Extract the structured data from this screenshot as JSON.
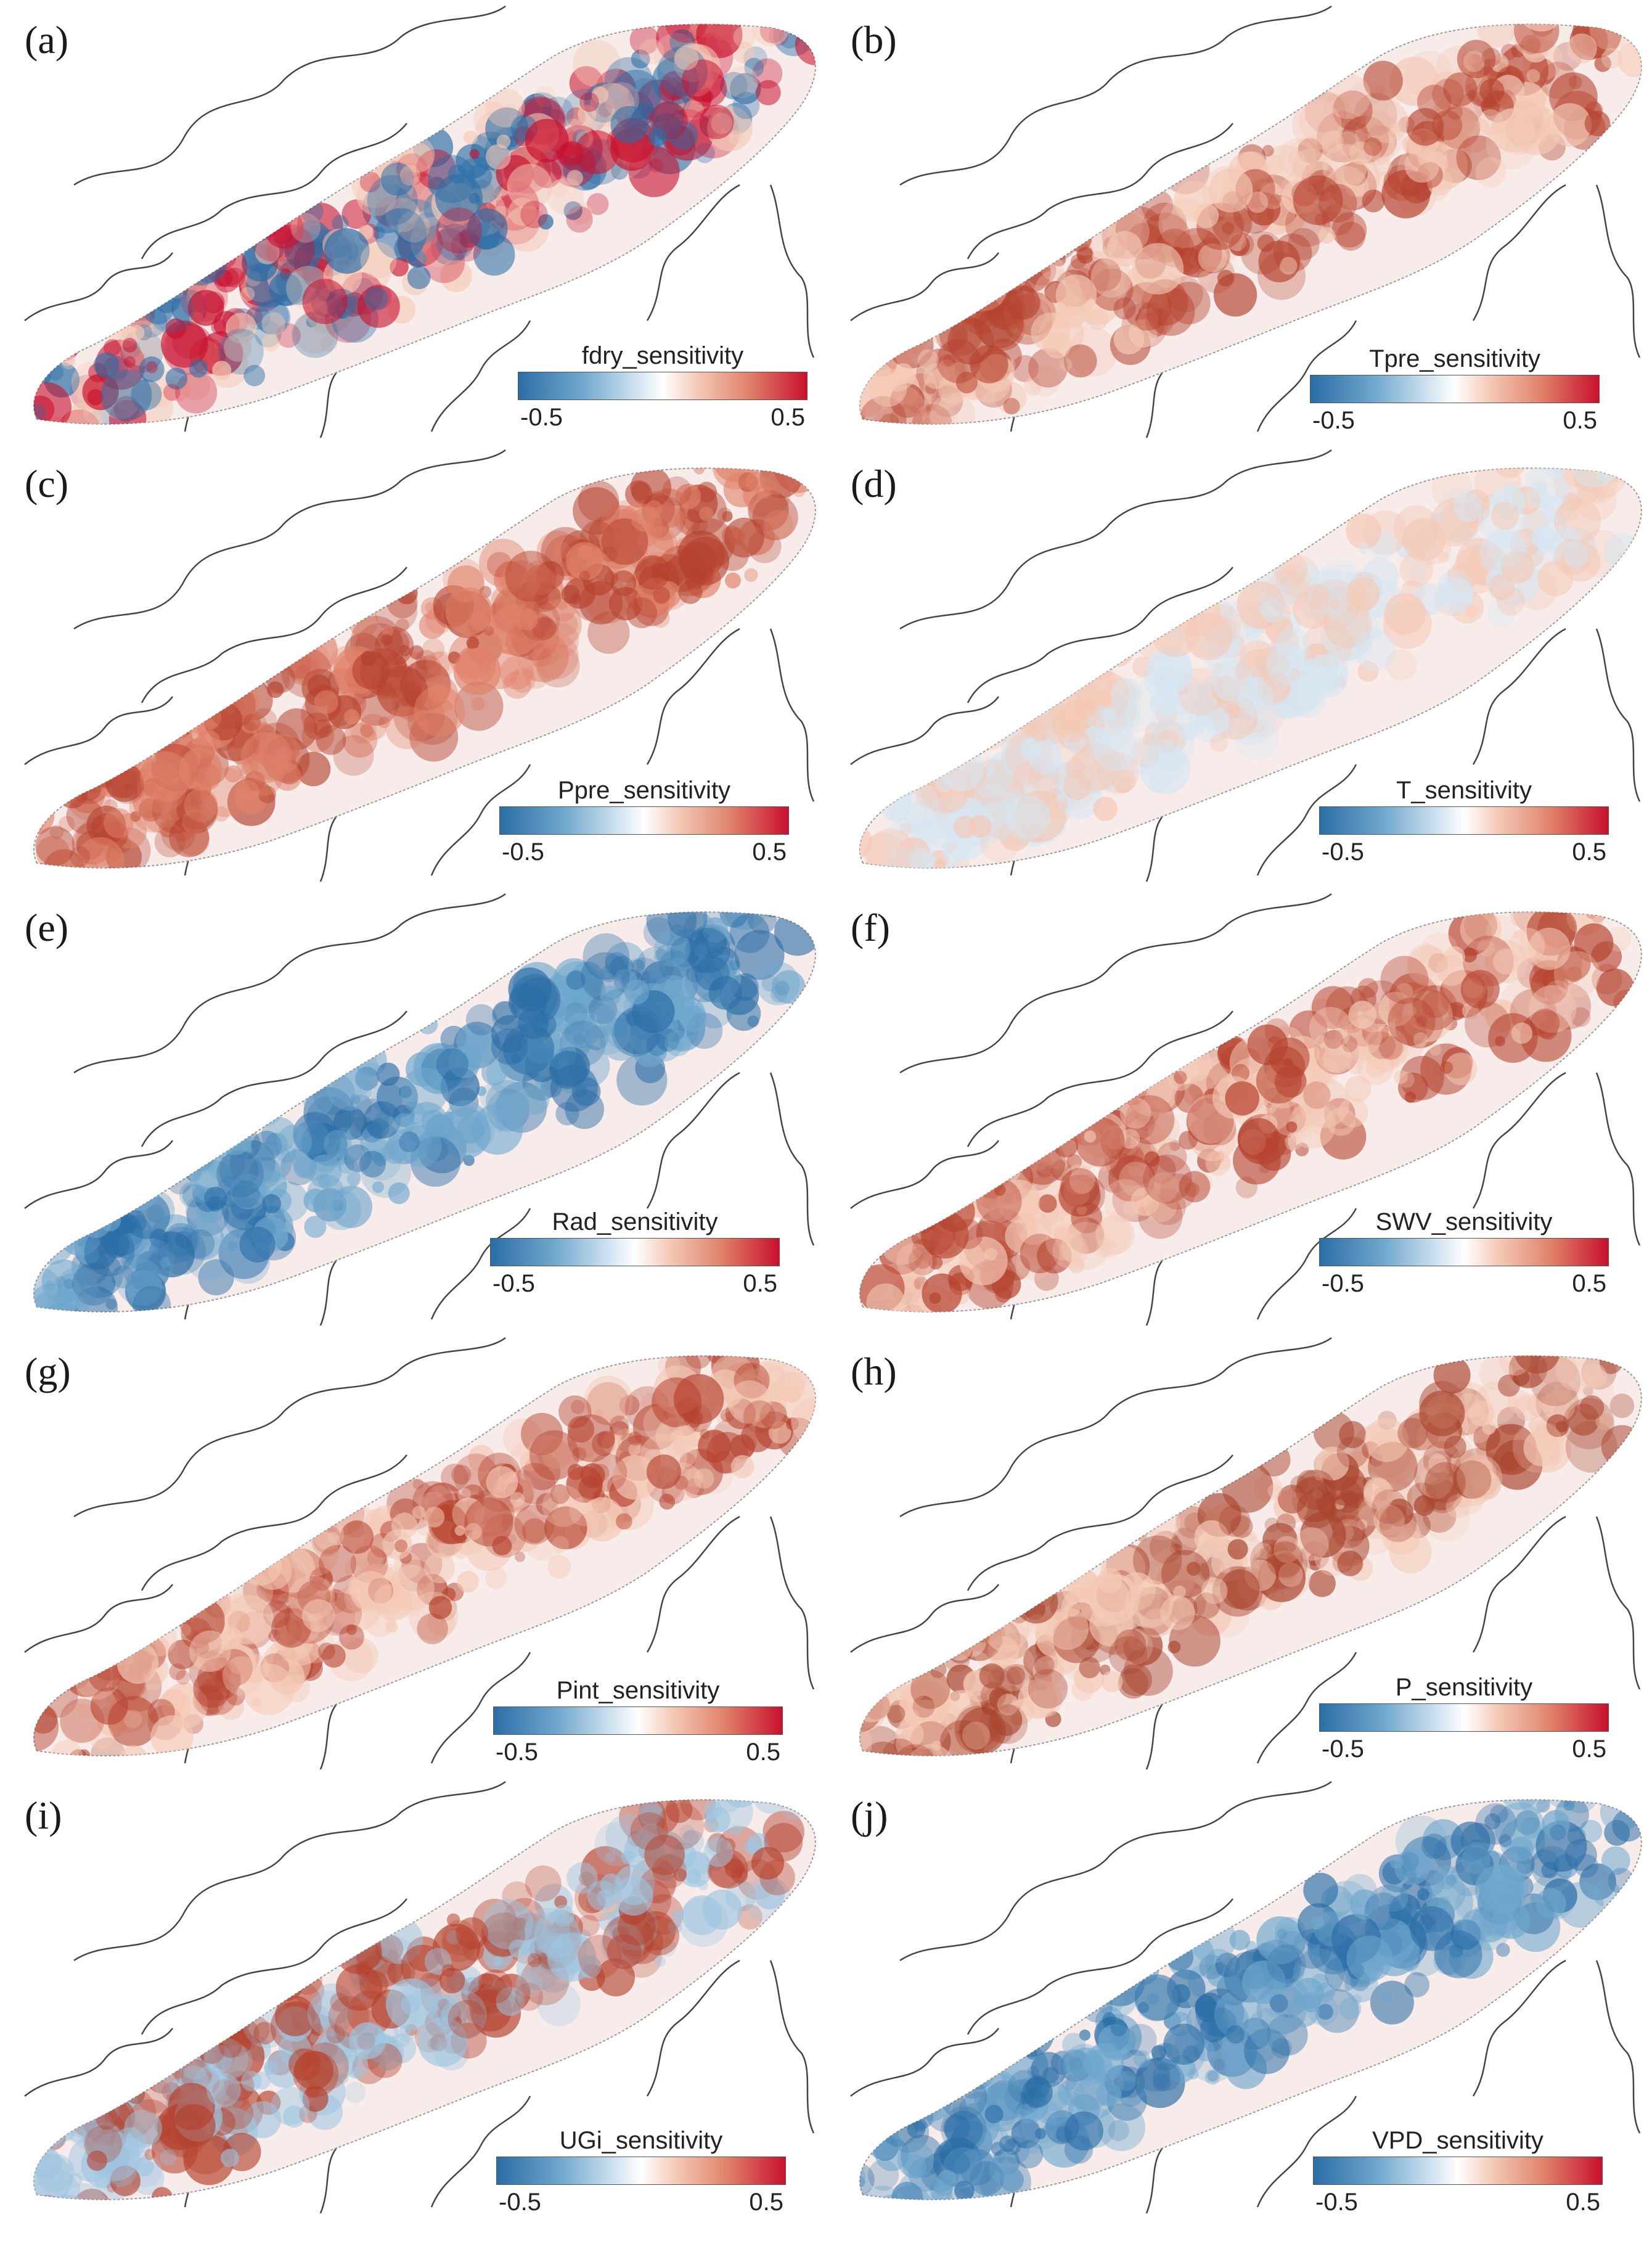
{
  "figure": {
    "panels": [
      {
        "letter": "(a)",
        "legend": {
          "title": "fdry_sensitivity",
          "min": "-0.5",
          "max": "0.5"
        },
        "dominant_colors": [
          "#2b6da6",
          "#f4c9b6",
          "#c8102e"
        ]
      },
      {
        "letter": "(b)",
        "legend": {
          "title": "Tpre_sensitivity",
          "min": "-0.5",
          "max": "0.5"
        },
        "dominant_colors": [
          "#f4c9b6",
          "#b5422e"
        ]
      },
      {
        "letter": "(c)",
        "legend": {
          "title": "Ppre_sensitivity",
          "min": "-0.5",
          "max": "0.5"
        },
        "dominant_colors": [
          "#e0826a",
          "#b5422e"
        ]
      },
      {
        "letter": "(d)",
        "legend": {
          "title": "T_sensitivity",
          "min": "-0.5",
          "max": "0.5"
        },
        "dominant_colors": [
          "#d6e6f2",
          "#f4c9b6"
        ]
      },
      {
        "letter": "(e)",
        "legend": {
          "title": "Rad_sensitivity",
          "min": "-0.5",
          "max": "0.5"
        },
        "dominant_colors": [
          "#6fa7cd",
          "#2b6da6"
        ]
      },
      {
        "letter": "(f)",
        "legend": {
          "title": "SWV_sensitivity",
          "min": "-0.5",
          "max": "0.5"
        },
        "dominant_colors": [
          "#b5422e",
          "#f4c9b6"
        ]
      },
      {
        "letter": "(g)",
        "legend": {
          "title": "Pint_sensitivity",
          "min": "-0.5",
          "max": "0.5"
        },
        "dominant_colors": [
          "#b5422e",
          "#f4c9b6"
        ]
      },
      {
        "letter": "(h)",
        "legend": {
          "title": "P_sensitivity",
          "min": "-0.5",
          "max": "0.5"
        },
        "dominant_colors": [
          "#a8442e",
          "#f4c9b6"
        ]
      },
      {
        "letter": "(i)",
        "legend": {
          "title": "UGi_sensitivity",
          "min": "-0.5",
          "max": "0.5"
        },
        "dominant_colors": [
          "#9ec5e0",
          "#b5422e"
        ]
      },
      {
        "letter": "(j)",
        "legend": {
          "title": "VPD_sensitivity",
          "min": "-0.5",
          "max": "0.5"
        },
        "dominant_colors": [
          "#2b6da6",
          "#6fa7cd"
        ]
      }
    ],
    "colormap": [
      "#2b6da6",
      "#ffffff",
      "#c8102e"
    ]
  }
}
